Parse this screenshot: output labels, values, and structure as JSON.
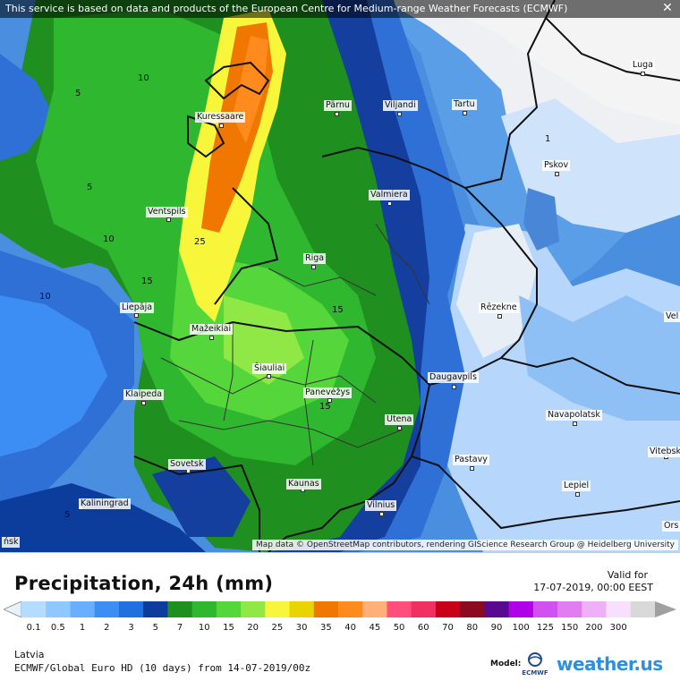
{
  "notice": "This service is based on data and products of the European Centre for Medium-range Weather Forecasts (ECMWF)",
  "attribution": "Map data © OpenStreetMap contributors, rendering GIScience Research Group @ Heidelberg University",
  "cities": {
    "kuressaare": "Kuressaare",
    "parnu": "Pärnu",
    "viljandi": "Viljandi",
    "tartu": "Tartu",
    "luga": "Luga",
    "pskov": "Pskov",
    "valmiera": "Valmiera",
    "ventspils": "Ventspils",
    "riga": "Riga",
    "liepaja": "Liepāja",
    "rezekne": "Rēzekne",
    "mazeikiai": "Mažeikiai",
    "siauliai": "Šiauliai",
    "daugavpils": "Daugavpils",
    "klaipeda": "Klaipeda",
    "panevezys": "Panevėžys",
    "utena": "Utena",
    "navapolatsk": "Navapolatsk",
    "vitebsk": "Vitebsk",
    "sovetsk": "Sovetsk",
    "pastavy": "Pastavy",
    "kaunas": "Kaunas",
    "lepiel": "Lepiel",
    "kaliningrad": "Kaliningrad",
    "vilnius": "Vilnius",
    "velikie": "Vel",
    "orsha": "Ors",
    "baltiysk": "ńsk"
  },
  "contours": [
    "10",
    "5",
    "5",
    "10",
    "10",
    "25",
    "15",
    "15",
    "15",
    "1",
    "5"
  ],
  "legend": {
    "title": "Precipitation, 24h (mm)",
    "valid_label": "Valid for",
    "valid_time": "17-07-2019, 00:00 EEST",
    "scale_colors": [
      "#b3dcff",
      "#8ec8ff",
      "#6aaeff",
      "#3c8ef5",
      "#2070e0",
      "#0c3c9c",
      "#1f8f1f",
      "#2fb82f",
      "#55d63a",
      "#8fe845",
      "#f8f63a",
      "#e8d400",
      "#f07800",
      "#ff8a1e",
      "#ffb078",
      "#ff4f7a",
      "#f03060",
      "#c80018",
      "#8c0a20",
      "#5a0a90",
      "#b000e8",
      "#d050f0",
      "#e07ef0",
      "#f0b0f8",
      "#f8e0fc",
      "#d8d8d8"
    ],
    "ticks": [
      "0.1",
      "0.5",
      "1",
      "2",
      "3",
      "5",
      "7",
      "10",
      "15",
      "20",
      "25",
      "30",
      "35",
      "40",
      "45",
      "50",
      "60",
      "70",
      "80",
      "90",
      "100",
      "125",
      "150",
      "200",
      "300"
    ],
    "region": "Latvia",
    "model_info": "ECMWF/Global Euro HD (10 days) from 14-07-2019/00z",
    "model_label": "Model:",
    "ecmwf": "ECMWF",
    "brand": "weather.us"
  }
}
